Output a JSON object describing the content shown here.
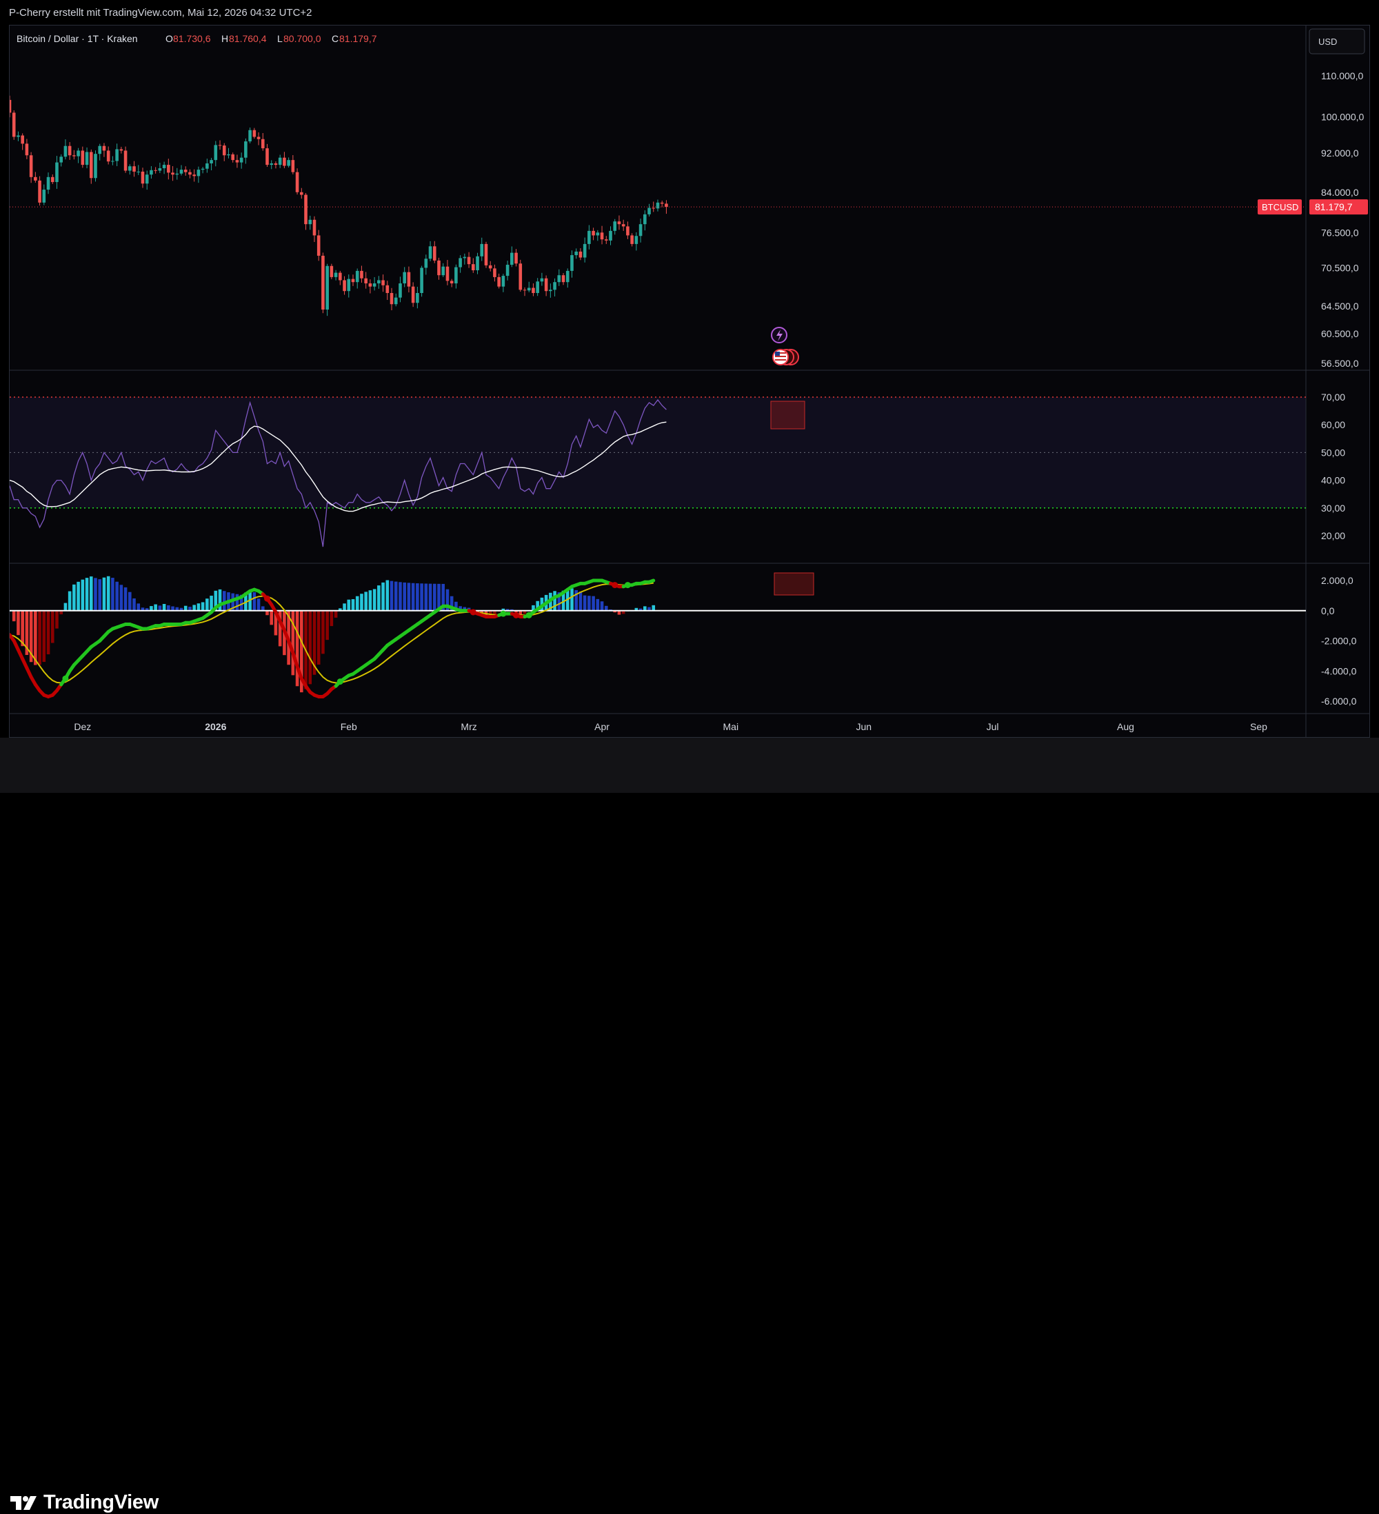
{
  "header": {
    "attribution": "P-Cherry erstellt mit TradingView.com, Mai 12, 2026 04:32 UTC+2"
  },
  "footer": {
    "logo_text": "TradingView"
  },
  "legend": {
    "symbol": "Bitcoin / Dollar · 1T · Kraken",
    "open_label": "O",
    "open": "81.730,6",
    "high_label": "H",
    "high": "81.760,4",
    "low_label": "L",
    "low": "80.700,0",
    "close_label": "C",
    "close": "81.179,7"
  },
  "currency": "USD",
  "price_badge": {
    "symbol": "BTCUSD",
    "value": "81.179,7"
  },
  "colors": {
    "up": "#26a69a",
    "down": "#ef5350",
    "rsi": "#7e57c2",
    "rsi_ma": "#ffffff",
    "macd_up": "#22c51e",
    "macd_down": "#c00000",
    "signal": "#d4c200",
    "overbought": "#e53935",
    "oversold": "#22dd22"
  },
  "chart_data": [
    {
      "type": "candlestick",
      "title": "Bitcoin / Dollar · 1T · Kraken",
      "y_scale": "log",
      "ylim": [
        56500,
        112000
      ],
      "y_ticks": [
        "110.000,0",
        "100.000,0",
        "92.000,0",
        "84.000,0",
        "76.500,0",
        "70.500,0",
        "64.500,0",
        "60.500,0",
        "56.500,0"
      ],
      "y_tick_values": [
        110000,
        100000,
        92000,
        84000,
        76500,
        70500,
        64500,
        60500,
        56500
      ],
      "x_ticks": [
        "Dez",
        "2026",
        "Feb",
        "Mrz",
        "Apr",
        "Mai",
        "Jun",
        "Jul",
        "Aug",
        "Sep"
      ],
      "x_tick_dates": [
        "2025-12-01",
        "2026-01-01",
        "2026-02-01",
        "2026-03-01",
        "2026-04-01",
        "2026-05-01",
        "2026-06-01",
        "2026-07-01",
        "2026-08-01",
        "2026-09-01"
      ],
      "start_date": "2025-11-14",
      "closes": [
        101000,
        95500,
        95800,
        94000,
        91500,
        87000,
        86300,
        82000,
        84500,
        87000,
        86000,
        90000,
        91200,
        93500,
        91500,
        91300,
        92500,
        89500,
        92200,
        86800,
        91800,
        93500,
        92500,
        90200,
        90300,
        92800,
        92500,
        88300,
        89200,
        88100,
        88100,
        85700,
        87500,
        88400,
        88300,
        88800,
        89500,
        87900,
        87500,
        87700,
        88500,
        88000,
        87500,
        87200,
        88500,
        88700,
        89800,
        90500,
        93700,
        93600,
        91500,
        91700,
        90500,
        90000,
        91000,
        94500,
        97000,
        95500,
        95000,
        93000,
        89500,
        89800,
        89500,
        91000,
        89300,
        90500,
        88000,
        84000,
        83500,
        78000,
        78800,
        76000,
        72500,
        64000,
        70800,
        69000,
        69700,
        68500,
        66800,
        68700,
        68200,
        70000,
        68800,
        68000,
        67500,
        68000,
        68500,
        67700,
        66500,
        64800,
        65800,
        68000,
        69800,
        67500,
        65000,
        66500,
        70500,
        72000,
        74100,
        71700,
        69300,
        70700,
        68400,
        68000,
        70600,
        72100,
        72300,
        71100,
        70100,
        72400,
        74500,
        70900,
        70400,
        69000,
        67500,
        69200,
        71000,
        73000,
        71200,
        67000,
        66900,
        67300,
        66500,
        68300,
        68800,
        66800,
        67000,
        68200,
        69300,
        68200,
        70000,
        72600,
        73200,
        72200,
        74500,
        76800,
        76000,
        76500,
        75300,
        75100,
        76800,
        78500,
        78000,
        77600,
        76000,
        74500,
        75900,
        78000,
        79800,
        81000,
        80900,
        82000,
        81800,
        81179.7
      ],
      "last_close": 81179.7
    },
    {
      "type": "line",
      "title": "RSI",
      "ylim": [
        15,
        80
      ],
      "y_ticks": [
        "70,00",
        "60,00",
        "50,00",
        "40,00",
        "30,00",
        "20,00"
      ],
      "y_tick_values": [
        70,
        60,
        50,
        40,
        30,
        20
      ],
      "levels": {
        "upper": 70,
        "middle": 50,
        "lower": 30
      },
      "rsi": [
        38,
        33,
        33,
        30,
        30,
        28,
        27,
        23,
        26,
        33,
        38,
        40,
        40,
        38,
        35,
        42,
        47,
        50,
        46,
        40,
        44,
        46,
        50,
        48,
        46,
        47,
        50,
        45,
        44,
        42,
        43,
        40,
        44,
        47,
        46,
        47,
        48,
        44,
        43,
        44,
        46,
        44,
        43,
        43,
        45,
        46,
        48,
        51,
        58,
        56,
        54,
        52,
        50,
        50,
        55,
        62,
        68,
        63,
        58,
        54,
        46,
        47,
        46,
        50,
        45,
        47,
        42,
        37,
        35,
        30,
        32,
        29,
        25,
        16,
        32,
        31,
        32,
        31,
        30,
        32,
        32,
        35,
        33,
        32,
        32,
        33,
        34,
        32,
        31,
        29,
        31,
        35,
        40,
        35,
        31,
        34,
        41,
        45,
        48,
        43,
        38,
        41,
        37,
        36,
        42,
        46,
        46,
        44,
        42,
        46,
        50,
        42,
        41,
        39,
        37,
        41,
        44,
        48,
        45,
        37,
        36,
        37,
        35,
        39,
        41,
        37,
        37,
        40,
        43,
        41,
        46,
        53,
        56,
        52,
        57,
        62,
        59,
        60,
        58,
        57,
        61,
        65,
        63,
        60,
        56,
        53,
        57,
        62,
        66,
        68,
        67,
        69,
        67,
        65.5
      ],
      "rsi_ma": [
        40,
        39.5,
        38.5,
        37.5,
        36,
        35,
        33.5,
        32,
        31,
        30.5,
        30.5,
        30.6,
        31,
        31.5,
        32,
        33,
        34.5,
        36,
        37.5,
        39,
        40.5,
        42,
        43,
        43.8,
        44.2,
        44.5,
        44.8,
        44.6,
        44.4,
        44,
        43.7,
        43.5,
        43.4,
        43.5,
        43.6,
        43.6,
        43.7,
        43.5,
        43.3,
        43.1,
        43,
        43,
        43,
        43.2,
        43.6,
        44.2,
        45,
        46,
        47.5,
        49,
        50.5,
        52,
        53.2,
        54,
        55,
        56.5,
        58.5,
        59.5,
        59.3,
        58.5,
        57.5,
        56.5,
        55.5,
        54.5,
        53,
        51.5,
        49.5,
        47.5,
        45.5,
        43,
        41,
        38.7,
        36.3,
        34,
        32.5,
        31.3,
        30.3,
        29.7,
        29.1,
        28.8,
        28.8,
        29.3,
        30,
        30.5,
        31,
        31.3,
        31.7,
        32,
        32.2,
        32.1,
        32,
        32,
        32.3,
        32.5,
        32.7,
        33,
        33.6,
        34.4,
        35.3,
        35.9,
        36.3,
        36.8,
        37.2,
        37.6,
        38.2,
        38.8,
        39.4,
        40,
        40.6,
        41.3,
        42.3,
        42.9,
        43.4,
        43.9,
        44.3,
        44.7,
        44.8,
        44.7,
        44.6,
        44.6,
        44.5,
        44.2,
        43.8,
        43.5,
        43,
        42.5,
        42,
        41.6,
        41.3,
        41.3,
        41.8,
        42.6,
        43.3,
        44.2,
        45.2,
        46.3,
        47.3,
        48.5,
        49.6,
        51,
        52.5,
        53.8,
        54.8,
        55.8,
        56.3,
        56.5,
        57,
        57.5,
        58.2,
        58.9,
        59.6,
        60.3,
        60.8,
        61
      ]
    },
    {
      "type": "bar",
      "title": "MACD",
      "ylim": [
        -6800,
        2600
      ],
      "y_ticks": [
        "2.000,0",
        "0,0",
        "-2.000,0",
        "-4.000,0",
        "-6.000,0"
      ],
      "y_tick_values": [
        2000,
        0,
        -2000,
        -4000,
        -6000
      ],
      "macd": [
        -1600,
        -2000,
        -2600,
        -3200,
        -3800,
        -4400,
        -4900,
        -5300,
        -5600,
        -5700,
        -5600,
        -5300,
        -4900,
        -4500,
        -4000,
        -3600,
        -3300,
        -3000,
        -2700,
        -2400,
        -2200,
        -2000,
        -1700,
        -1400,
        -1200,
        -1100,
        -1000,
        -900,
        -900,
        -1000,
        -1100,
        -1200,
        -1200,
        -1100,
        -1000,
        -1000,
        -900,
        -900,
        -900,
        -900,
        -900,
        -800,
        -800,
        -700,
        -600,
        -500,
        -300,
        -100,
        200,
        400,
        500,
        600,
        700,
        800,
        900,
        1100,
        1300,
        1400,
        1300,
        1100,
        800,
        400,
        -100,
        -700,
        -1300,
        -2000,
        -2800,
        -3700,
        -4500,
        -5000,
        -5400,
        -5600,
        -5700,
        -5700,
        -5500,
        -5200,
        -5000,
        -4700,
        -4500,
        -4300,
        -4200,
        -4000,
        -3800,
        -3600,
        -3400,
        -3200,
        -2900,
        -2600,
        -2300,
        -2100,
        -1900,
        -1700,
        -1500,
        -1300,
        -1100,
        -900,
        -700,
        -500,
        -300,
        -100,
        100,
        300,
        300,
        200,
        100,
        0,
        0,
        0,
        -100,
        -200,
        -300,
        -400,
        -400,
        -400,
        -300,
        -200,
        -200,
        -200,
        -300,
        -400,
        -400,
        -300,
        -100,
        100,
        300,
        500,
        700,
        900,
        1000,
        1200,
        1400,
        1600,
        1700,
        1800,
        1800,
        1900,
        2000,
        2000,
        2000,
        1900,
        1800,
        1700,
        1600,
        1600,
        1700,
        1700,
        1800,
        1800,
        1900,
        1900,
        2000
      ]
    }
  ]
}
